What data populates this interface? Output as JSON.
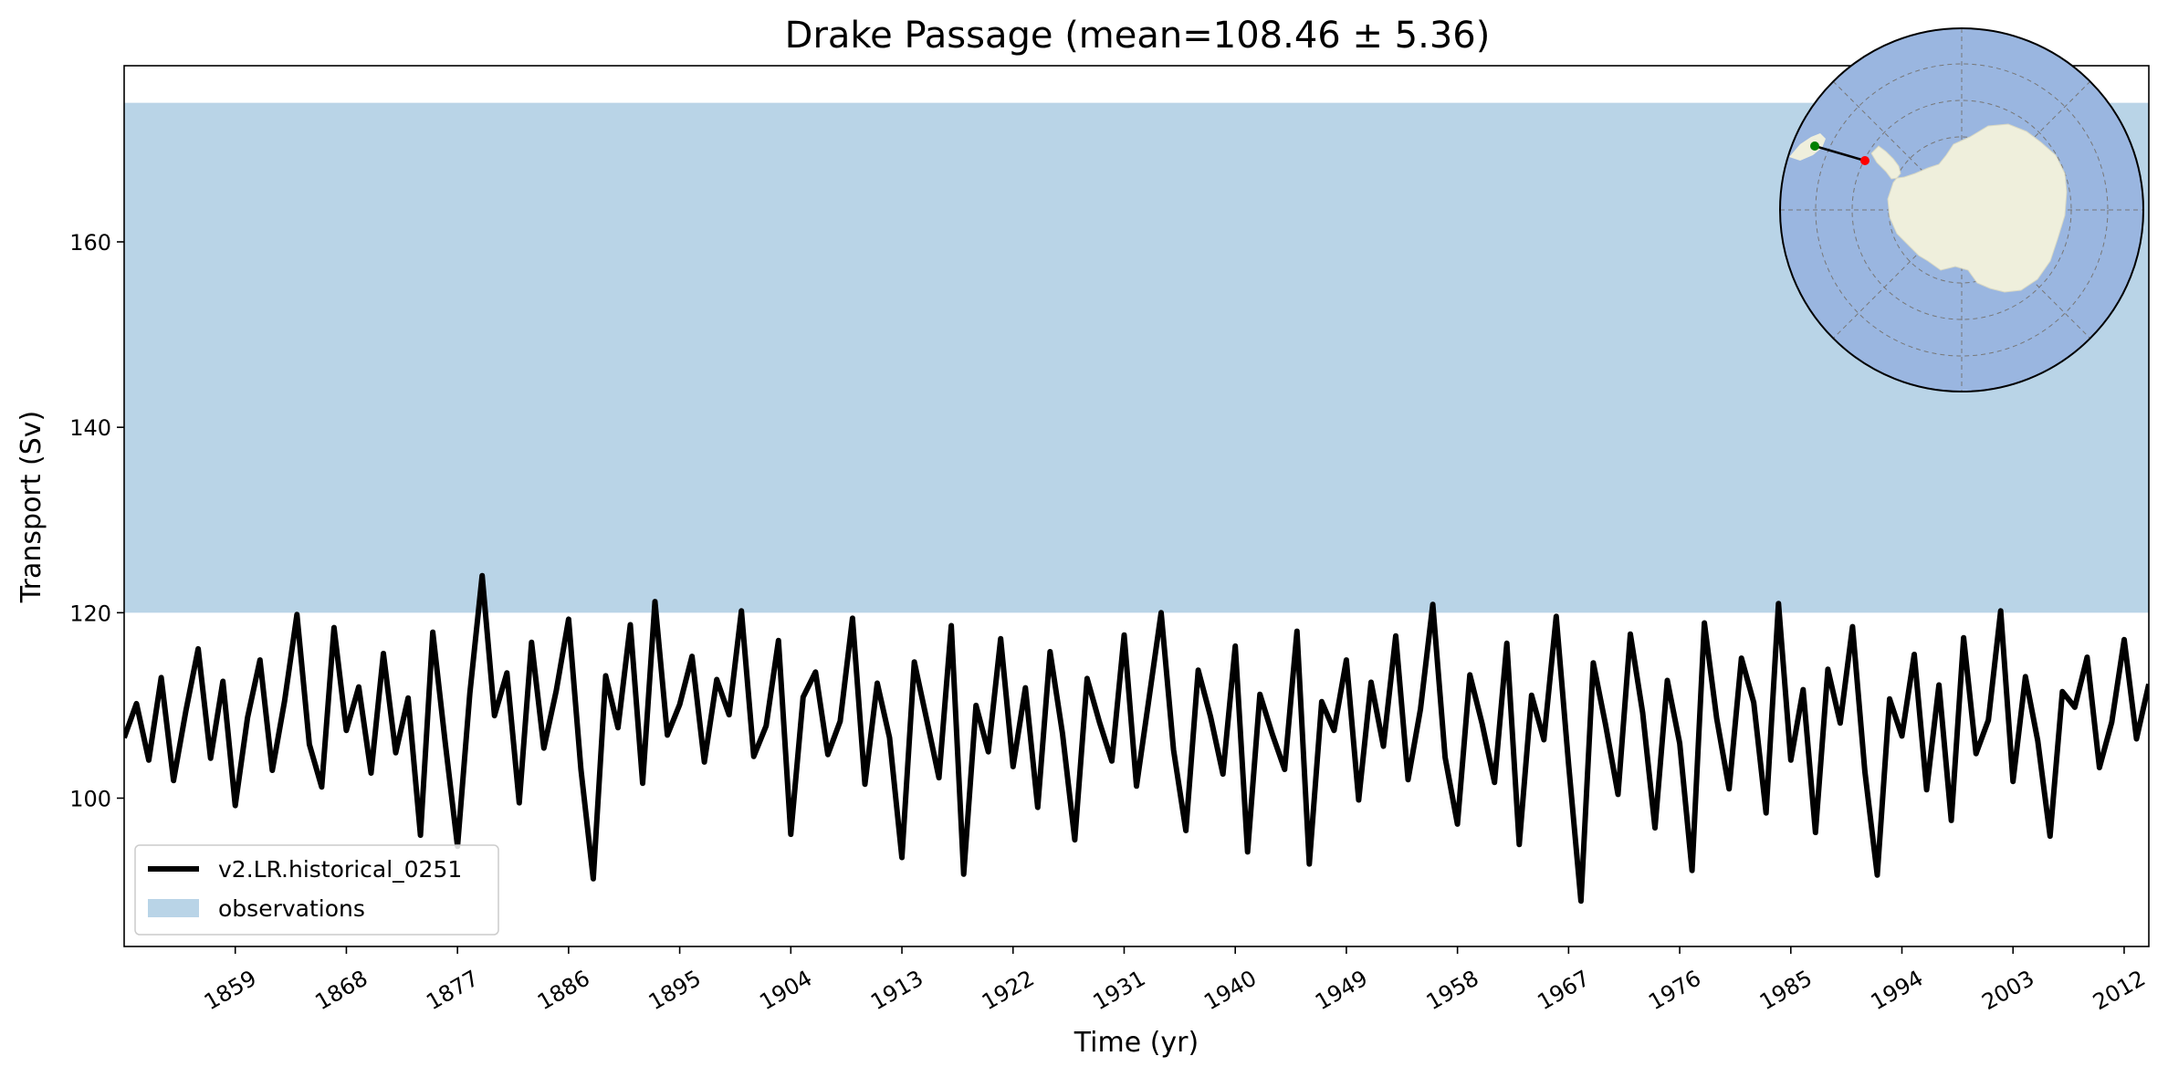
{
  "chart_data": {
    "type": "line",
    "title": "Drake Passage (mean=108.46 ± 5.36)",
    "xlabel": "Time (yr)",
    "ylabel": "Transport (Sv)",
    "xlim": [
      1850,
      2014
    ],
    "ylim": [
      84,
      179
    ],
    "x_ticks": [
      1859,
      1868,
      1877,
      1886,
      1895,
      1904,
      1913,
      1922,
      1931,
      1940,
      1949,
      1958,
      1967,
      1976,
      1985,
      1994,
      2003,
      2012
    ],
    "y_ticks": [
      100,
      120,
      140,
      160
    ],
    "grid": false,
    "legend_position": "lower-left",
    "observations_band": {
      "name": "observations",
      "y_range": [
        120,
        175
      ],
      "color": "#b9d4e7"
    },
    "series": [
      {
        "name": "v2.LR.historical_0251",
        "color": "#000000",
        "x_start": 1850,
        "x_step": 1,
        "values": [
          106.5,
          110.2,
          104.1,
          113.0,
          101.9,
          109.4,
          116.1,
          104.3,
          112.6,
          99.2,
          108.7,
          114.9,
          103.0,
          110.5,
          119.8,
          105.8,
          101.2,
          118.4,
          107.3,
          112.0,
          102.7,
          115.6,
          104.9,
          110.8,
          96.0,
          117.9,
          106.1,
          94.8,
          111.3,
          124.0,
          108.9,
          113.5,
          99.5,
          116.8,
          105.4,
          111.6,
          119.3,
          103.1,
          91.3,
          113.2,
          107.6,
          118.7,
          101.6,
          121.2,
          106.8,
          110.1,
          115.3,
          103.9,
          112.8,
          109.0,
          120.2,
          104.5,
          107.8,
          117.0,
          96.1,
          110.9,
          113.6,
          104.7,
          108.3,
          119.4,
          101.5,
          112.4,
          106.5,
          93.6,
          114.7,
          108.5,
          102.2,
          118.6,
          91.8,
          110.0,
          105.0,
          117.2,
          103.4,
          111.9,
          99.0,
          115.8,
          107.0,
          95.5,
          112.9,
          108.2,
          104.0,
          117.6,
          101.3,
          110.6,
          120.0,
          105.2,
          96.5,
          113.8,
          108.8,
          102.6,
          116.4,
          94.2,
          111.2,
          106.9,
          103.1,
          118.0,
          92.9,
          110.4,
          107.3,
          114.9,
          99.8,
          112.5,
          105.6,
          117.5,
          102.0,
          109.6,
          120.9,
          104.4,
          97.2,
          113.3,
          108.0,
          101.7,
          116.7,
          95.0,
          111.1,
          106.3,
          119.6,
          103.6,
          88.9,
          114.6,
          107.9,
          100.4,
          117.7,
          109.2,
          96.8,
          112.7,
          105.9,
          92.2,
          118.9,
          108.6,
          101.0,
          115.1,
          110.3,
          98.4,
          121.0,
          104.1,
          111.7,
          96.3,
          113.9,
          108.1,
          118.5,
          102.9,
          91.7,
          110.7,
          106.7,
          115.5,
          100.9,
          112.2,
          97.6,
          117.3,
          104.8,
          108.4,
          120.2,
          101.8,
          113.1,
          106.2,
          95.9,
          111.5,
          109.8,
          115.2,
          103.3,
          108.2,
          117.1,
          106.4,
          112.3
        ]
      }
    ]
  },
  "inset_map": {
    "projection": "south-polar-stereographic",
    "ocean_color": "#9ab6e0",
    "land_color": "#efefdc",
    "section_start_color": "#008000",
    "section_end_color": "#ff0000"
  }
}
